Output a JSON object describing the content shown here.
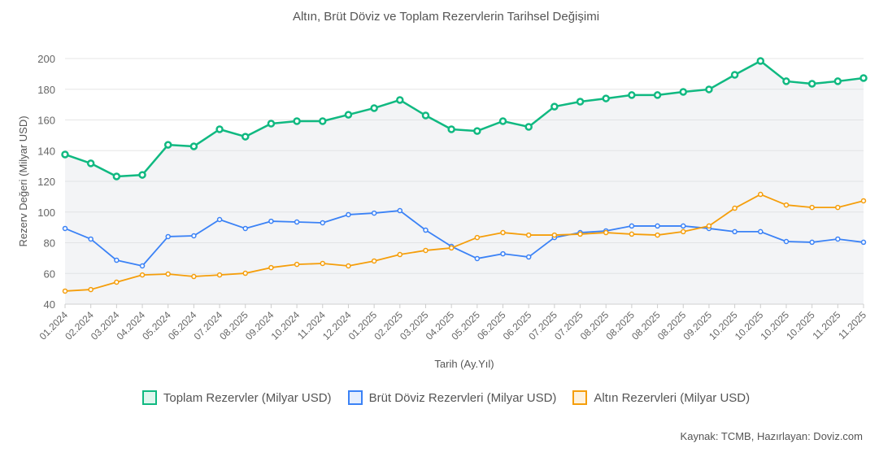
{
  "chart_data": {
    "type": "line",
    "title": "",
    "subtitle": "Altın, Brüt Döviz ve Toplam Rezervlerin Tarihsel Değişimi",
    "xlabel": "Tarih (Ay.Yıl)",
    "ylabel": "Rezerv Değeri (Milyar USD)",
    "ylim": [
      40,
      200
    ],
    "yticks": [
      40,
      60,
      80,
      100,
      120,
      140,
      160,
      180,
      200
    ],
    "grid": true,
    "legend_position": "bottom",
    "categories": [
      "01.2024",
      "02.2024",
      "03.2024",
      "04.2024",
      "05.2024",
      "06.2024",
      "07.2024",
      "08.2025",
      "09.2024",
      "10.2024",
      "11.2024",
      "12.2024",
      "01.2025",
      "02.2025",
      "03.2025",
      "04.2025",
      "05.2025",
      "06.2025",
      "06.2025",
      "07.2025",
      "07.2025",
      "08.2025",
      "08.2025",
      "08.2025",
      "08.2025",
      "09.2025",
      "10.2025",
      "10.2025",
      "10.2025",
      "10.2025",
      "11.2025",
      "11.2025"
    ],
    "series": [
      {
        "name": "Toplam Rezervler (Milyar USD)",
        "color": "#10b981",
        "fill": true,
        "values": [
          137.5,
          131.7,
          123.2,
          124.2,
          143.8,
          142.8,
          153.9,
          149.1,
          157.6,
          159.2,
          159.2,
          163.4,
          167.7,
          173.0,
          162.9,
          153.9,
          152.8,
          159.2,
          155.5,
          168.7,
          171.9,
          174.0,
          176.2,
          176.2,
          178.3,
          179.9,
          189.4,
          198.4,
          185.2,
          183.6,
          185.2,
          187.3
        ]
      },
      {
        "name": "Brüt Döviz Rezervleri (Milyar USD)",
        "color": "#3b82f6",
        "fill": false,
        "values": [
          89.3,
          82.4,
          68.6,
          64.9,
          84.0,
          84.5,
          95.1,
          89.3,
          94.0,
          93.5,
          93.0,
          98.3,
          99.3,
          100.9,
          88.2,
          77.6,
          69.7,
          72.8,
          70.7,
          83.4,
          86.6,
          87.7,
          90.9,
          90.9,
          90.9,
          89.3,
          87.2,
          87.2,
          80.8,
          80.3,
          82.4,
          80.3
        ]
      },
      {
        "name": "Altın Rezervleri (Milyar USD)",
        "color": "#f59e0b",
        "fill": false,
        "values": [
          48.5,
          49.5,
          54.3,
          59.0,
          59.6,
          58.0,
          59.0,
          60.1,
          63.8,
          65.9,
          66.5,
          64.9,
          68.1,
          72.3,
          75.0,
          76.6,
          83.4,
          86.6,
          85.0,
          85.0,
          85.6,
          86.6,
          85.6,
          85.0,
          87.2,
          90.9,
          102.5,
          111.5,
          104.6,
          103.0,
          103.0,
          107.3
        ]
      }
    ]
  },
  "source": "Kaynak: TCMB, Hazırlayan: Doviz.com"
}
